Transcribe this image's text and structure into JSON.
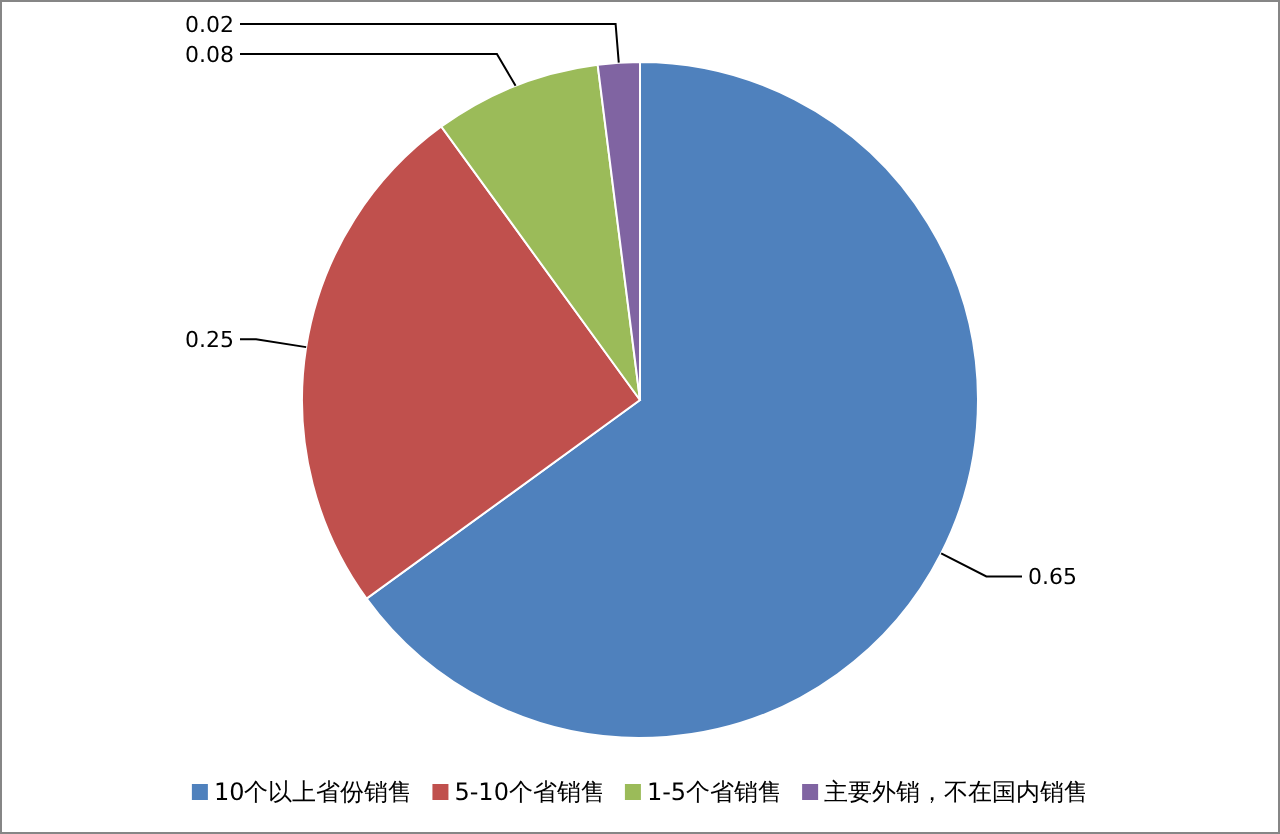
{
  "chart_data": {
    "type": "pie",
    "categories": [
      "10个以上省份销售",
      "5-10个省销售",
      "1-5个省销售",
      "主要外销，不在国内销售"
    ],
    "values": [
      0.65,
      0.25,
      0.08,
      0.02
    ],
    "colors": [
      "#4f81bd",
      "#c0504d",
      "#9bbb59",
      "#8064a2"
    ],
    "data_labels": true,
    "legend": "bottom"
  }
}
